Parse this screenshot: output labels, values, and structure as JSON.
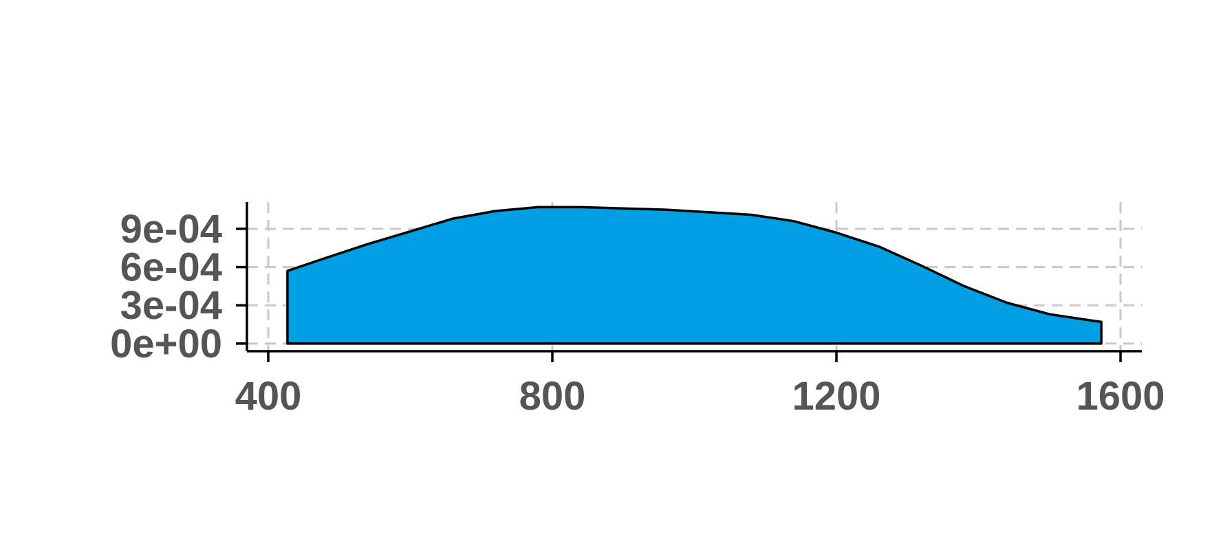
{
  "chart_data": {
    "type": "area",
    "title": "",
    "xlabel": "",
    "ylabel": "",
    "xlim": [
      370,
      1630
    ],
    "ylim": [
      -6e-05,
      0.00111
    ],
    "x_ticks": [
      400,
      800,
      1200,
      1600
    ],
    "x_tick_labels": [
      "400",
      "800",
      "1200",
      "1600"
    ],
    "y_ticks": [
      0,
      0.0003,
      0.0006,
      0.0009
    ],
    "y_tick_labels": [
      "0e+00",
      "3e-04",
      "6e-04",
      "9e-04"
    ],
    "grid": true,
    "legend": "none",
    "series": [
      {
        "x": [
          427,
          480,
          540,
          600,
          660,
          720,
          780,
          840,
          900,
          960,
          1020,
          1080,
          1140,
          1200,
          1260,
          1320,
          1380,
          1440,
          1500,
          1560,
          1573
        ],
        "y": [
          0.00057,
          0.00067,
          0.00078,
          0.00088,
          0.00098,
          0.00104,
          0.00107,
          0.00107,
          0.00106,
          0.00105,
          0.00103,
          0.00101,
          0.00096,
          0.00087,
          0.00076,
          0.00061,
          0.00045,
          0.00032,
          0.00023,
          0.00018,
          0.00017
        ]
      }
    ],
    "colors": {
      "fill": "#009fe3",
      "outline": "#000000",
      "grid": "#c8c8d2",
      "axis": "#000000",
      "tick_label": "#555555",
      "background": "#ffffff"
    }
  }
}
